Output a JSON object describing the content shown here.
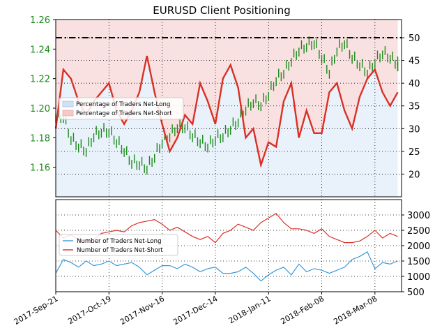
{
  "chart_data": [
    {
      "type": "line",
      "title": "EURUSD Client Positioning",
      "left_axis": {
        "ylim": [
          1.14,
          1.26
        ],
        "ticks": [
          1.16,
          1.18,
          1.2,
          1.22,
          1.24,
          1.26
        ],
        "tick_labels": [
          "1.16",
          "1.18",
          "1.20",
          "1.22",
          "1.24",
          "1.26"
        ],
        "color": "#1a8a1a"
      },
      "right_axis": {
        "ylim": [
          15,
          54
        ],
        "ticks": [
          20,
          25,
          30,
          35,
          40,
          45,
          50
        ],
        "tick_labels": [
          "20",
          "25",
          "30",
          "35",
          "40",
          "45",
          "50"
        ],
        "reference_line": 50
      },
      "legend": {
        "placement": "center-left",
        "entries": [
          {
            "label": "Percentage of Traders Net-Long",
            "color": "#cfe3f5"
          },
          {
            "label": "Percentage of Traders Net-Short",
            "color": "#f6c8c8"
          }
        ]
      },
      "grid": true,
      "series": [
        {
          "name": "Percentage of Traders Net-Short",
          "color": "#d93025",
          "x": [
            "2017-09-21",
            "2017-09-25",
            "2017-09-29",
            "2017-10-03",
            "2017-10-07",
            "2017-10-11",
            "2017-10-15",
            "2017-10-19",
            "2017-10-23",
            "2017-10-27",
            "2017-10-31",
            "2017-11-04",
            "2017-11-08",
            "2017-11-12",
            "2017-11-16",
            "2017-11-20",
            "2017-11-24",
            "2017-11-28",
            "2017-12-02",
            "2017-12-06",
            "2017-12-10",
            "2017-12-14",
            "2017-12-18",
            "2017-12-22",
            "2017-12-26",
            "2017-12-30",
            "2018-01-03",
            "2018-01-07",
            "2018-01-11",
            "2018-01-15",
            "2018-01-19",
            "2018-01-23",
            "2018-01-27",
            "2018-01-31",
            "2018-02-04",
            "2018-02-08",
            "2018-02-12",
            "2018-02-16",
            "2018-02-20",
            "2018-02-24",
            "2018-02-28",
            "2018-03-04",
            "2018-03-08",
            "2018-03-12",
            "2018-03-16",
            "2018-03-20"
          ],
          "y": [
            30,
            43,
            41,
            36,
            33,
            36,
            38,
            40,
            34,
            31,
            34,
            38,
            46,
            38,
            31,
            25,
            28,
            33,
            31,
            40,
            36,
            31,
            41,
            44,
            39,
            28,
            30,
            22,
            27,
            26,
            36,
            40,
            28,
            34,
            29,
            29,
            38,
            40,
            34,
            30,
            37,
            41,
            43,
            38,
            35,
            38
          ]
        },
        {
          "name": "EURUSD",
          "color": "#1a8a1a",
          "x": [
            "2017-09-21",
            "2017-09-25",
            "2017-09-29",
            "2017-10-03",
            "2017-10-07",
            "2017-10-11",
            "2017-10-15",
            "2017-10-19",
            "2017-10-23",
            "2017-10-27",
            "2017-10-31",
            "2017-11-04",
            "2017-11-08",
            "2017-11-12",
            "2017-11-16",
            "2017-11-20",
            "2017-11-24",
            "2017-11-28",
            "2017-12-02",
            "2017-12-06",
            "2017-12-10",
            "2017-12-14",
            "2017-12-18",
            "2017-12-22",
            "2017-12-26",
            "2017-12-30",
            "2018-01-03",
            "2018-01-07",
            "2018-01-11",
            "2018-01-15",
            "2018-01-19",
            "2018-01-23",
            "2018-01-27",
            "2018-01-31",
            "2018-02-04",
            "2018-02-08",
            "2018-02-12",
            "2018-02-16",
            "2018-02-20",
            "2018-02-24",
            "2018-02-28",
            "2018-03-04",
            "2018-03-08",
            "2018-03-12",
            "2018-03-16",
            "2018-03-20"
          ],
          "y": [
            1.195,
            1.195,
            1.18,
            1.175,
            1.172,
            1.182,
            1.185,
            1.185,
            1.178,
            1.172,
            1.164,
            1.163,
            1.16,
            1.168,
            1.178,
            1.182,
            1.188,
            1.188,
            1.182,
            1.178,
            1.175,
            1.18,
            1.182,
            1.187,
            1.192,
            1.2,
            1.205,
            1.203,
            1.21,
            1.22,
            1.225,
            1.233,
            1.24,
            1.243,
            1.245,
            1.235,
            1.225,
            1.24,
            1.245,
            1.235,
            1.23,
            1.225,
            1.232,
            1.238,
            1.235,
            1.23
          ]
        }
      ]
    },
    {
      "type": "line",
      "ylim": [
        500,
        3500
      ],
      "ticks": [
        500,
        1000,
        1500,
        2000,
        2500,
        3000
      ],
      "tick_labels": [
        "500",
        "1000",
        "1500",
        "2000",
        "2500",
        "3000"
      ],
      "legend": {
        "placement": "center-left",
        "entries": [
          {
            "label": "Number of Traders Net-Long",
            "color": "#3a9ad9"
          },
          {
            "label": "Number of Traders Net-Short",
            "color": "#d93025"
          }
        ]
      },
      "x_tick_labels": [
        "2017-Sep-21",
        "2017-Oct-19",
        "2017-Nov-16",
        "2017-Dec-14",
        "2018-Jan-11",
        "2018-Feb-08",
        "2018-Mar-08"
      ],
      "x_tick_dates": [
        "2017-09-21",
        "2017-10-19",
        "2017-11-16",
        "2017-12-14",
        "2018-01-11",
        "2018-02-08",
        "2018-03-08"
      ],
      "x_range": [
        "2017-09-21",
        "2018-03-22"
      ],
      "grid": true,
      "series": [
        {
          "name": "Number of Traders Net-Long",
          "color": "#3a9ad9",
          "x": [
            "2017-09-21",
            "2017-09-25",
            "2017-09-29",
            "2017-10-03",
            "2017-10-07",
            "2017-10-11",
            "2017-10-15",
            "2017-10-19",
            "2017-10-23",
            "2017-10-27",
            "2017-10-31",
            "2017-11-04",
            "2017-11-08",
            "2017-11-12",
            "2017-11-16",
            "2017-11-20",
            "2017-11-24",
            "2017-11-28",
            "2017-12-02",
            "2017-12-06",
            "2017-12-10",
            "2017-12-14",
            "2017-12-18",
            "2017-12-22",
            "2017-12-26",
            "2017-12-30",
            "2018-01-03",
            "2018-01-07",
            "2018-01-11",
            "2018-01-15",
            "2018-01-19",
            "2018-01-23",
            "2018-01-27",
            "2018-01-31",
            "2018-02-04",
            "2018-02-08",
            "2018-02-12",
            "2018-02-16",
            "2018-02-20",
            "2018-02-24",
            "2018-02-28",
            "2018-03-04",
            "2018-03-08",
            "2018-03-12",
            "2018-03-16",
            "2018-03-20"
          ],
          "y": [
            1100,
            1550,
            1450,
            1300,
            1500,
            1350,
            1400,
            1500,
            1350,
            1400,
            1450,
            1300,
            1050,
            1200,
            1350,
            1350,
            1250,
            1400,
            1300,
            1150,
            1250,
            1300,
            1100,
            1100,
            1150,
            1300,
            1100,
            850,
            1050,
            1200,
            1300,
            1050,
            1400,
            1150,
            1250,
            1200,
            1100,
            1200,
            1300,
            1550,
            1650,
            1800,
            1250,
            1450,
            1400,
            1500
          ]
        },
        {
          "name": "Number of Traders Net-Short",
          "color": "#d93025",
          "x": [
            "2017-09-21",
            "2017-09-25",
            "2017-09-29",
            "2017-10-03",
            "2017-10-07",
            "2017-10-11",
            "2017-10-15",
            "2017-10-19",
            "2017-10-23",
            "2017-10-27",
            "2017-10-31",
            "2017-11-04",
            "2017-11-08",
            "2017-11-12",
            "2017-11-16",
            "2017-11-20",
            "2017-11-24",
            "2017-11-28",
            "2017-12-02",
            "2017-12-06",
            "2017-12-10",
            "2017-12-14",
            "2017-12-18",
            "2017-12-22",
            "2017-12-26",
            "2017-12-30",
            "2018-01-03",
            "2018-01-07",
            "2018-01-11",
            "2018-01-15",
            "2018-01-19",
            "2018-01-23",
            "2018-01-27",
            "2018-01-31",
            "2018-02-04",
            "2018-02-08",
            "2018-02-12",
            "2018-02-16",
            "2018-02-20",
            "2018-02-24",
            "2018-02-28",
            "2018-03-04",
            "2018-03-08",
            "2018-03-12",
            "2018-03-16",
            "2018-03-20"
          ],
          "y": [
            2500,
            2250,
            2350,
            2200,
            2150,
            2200,
            2400,
            2450,
            2500,
            2450,
            2650,
            2750,
            2800,
            2850,
            2700,
            2500,
            2600,
            2450,
            2300,
            2200,
            2300,
            2100,
            2400,
            2500,
            2700,
            2600,
            2500,
            2750,
            2900,
            3050,
            2750,
            2550,
            2550,
            2500,
            2400,
            2550,
            2300,
            2200,
            2100,
            2100,
            2150,
            2300,
            2500,
            2250,
            2400,
            2300
          ]
        }
      ]
    }
  ]
}
